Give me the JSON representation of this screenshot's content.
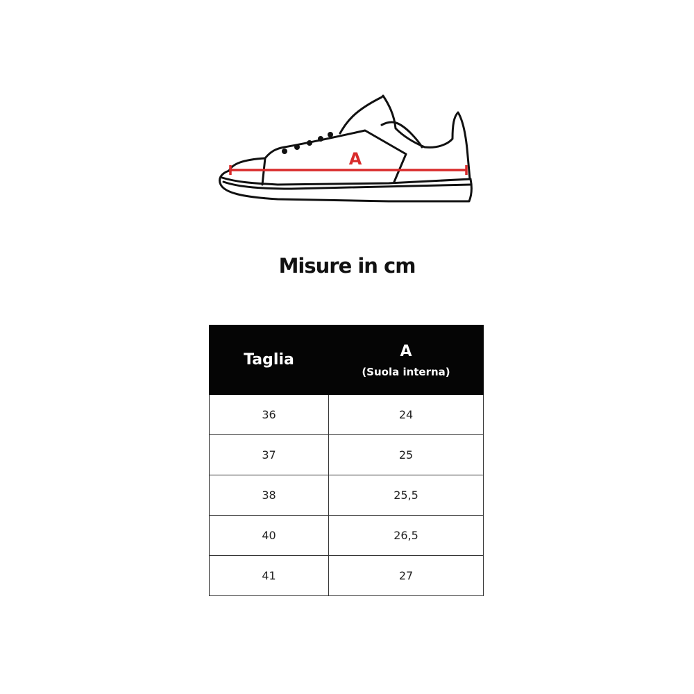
{
  "diagram": {
    "measure_label": "A",
    "measure_color": "#d92b2b"
  },
  "title": "Misure in cm",
  "table": {
    "headers": {
      "size": "Taglia",
      "a": "A",
      "a_sub": "(Suola interna)"
    },
    "rows": [
      {
        "size": "36",
        "a": "24"
      },
      {
        "size": "37",
        "a": "25"
      },
      {
        "size": "38",
        "a": "25,5"
      },
      {
        "size": "40",
        "a": "26,5"
      },
      {
        "size": "41",
        "a": "27"
      }
    ]
  }
}
